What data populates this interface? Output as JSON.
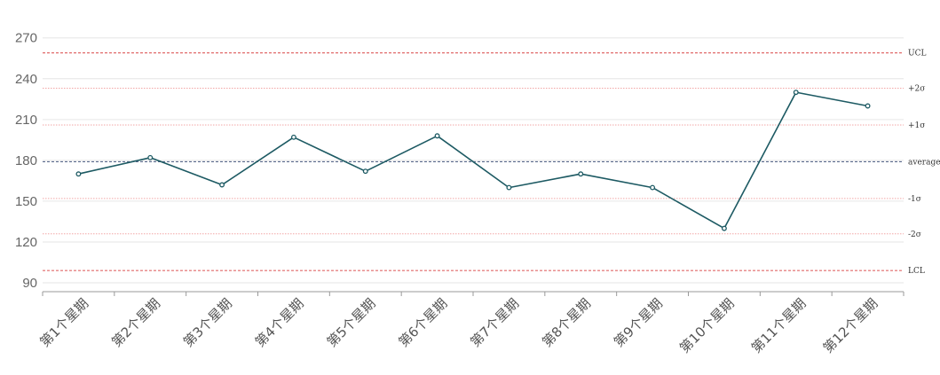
{
  "chart_data": {
    "type": "line",
    "categories": [
      "第1个星期",
      "第2个星期",
      "第3个星期",
      "第4个星期",
      "第5个星期",
      "第6个星期",
      "第7个星期",
      "第8个星期",
      "第9个星期",
      "第10个星期",
      "第11个星期",
      "第12个星期"
    ],
    "series": [
      {
        "values": [
          170,
          182,
          162,
          197,
          172,
          198,
          160,
          170,
          160,
          130,
          230,
          220
        ]
      }
    ],
    "control_lines": [
      {
        "label": "UCL",
        "value": 259,
        "kind": "limit"
      },
      {
        "label": "+2σ",
        "value": 233,
        "kind": "sigma"
      },
      {
        "label": "+1σ",
        "value": 206,
        "kind": "sigma"
      },
      {
        "label": "average",
        "value": 179,
        "kind": "average"
      },
      {
        "label": "-1σ",
        "value": 152,
        "kind": "sigma"
      },
      {
        "label": "-2σ",
        "value": 126,
        "kind": "sigma"
      },
      {
        "label": "LCL",
        "value": 99,
        "kind": "limit"
      }
    ],
    "yticks": [
      90,
      120,
      150,
      180,
      210,
      240,
      270
    ],
    "ylim": [
      83.5,
      277
    ],
    "grid": true,
    "legend": "none",
    "colors": {
      "line": "#1d5a63",
      "limit": "#e06a6a",
      "sigma": "#f2a6a6",
      "average": "#5a6a8c",
      "grid": "#e6e6e6",
      "axis": "#999999"
    }
  }
}
